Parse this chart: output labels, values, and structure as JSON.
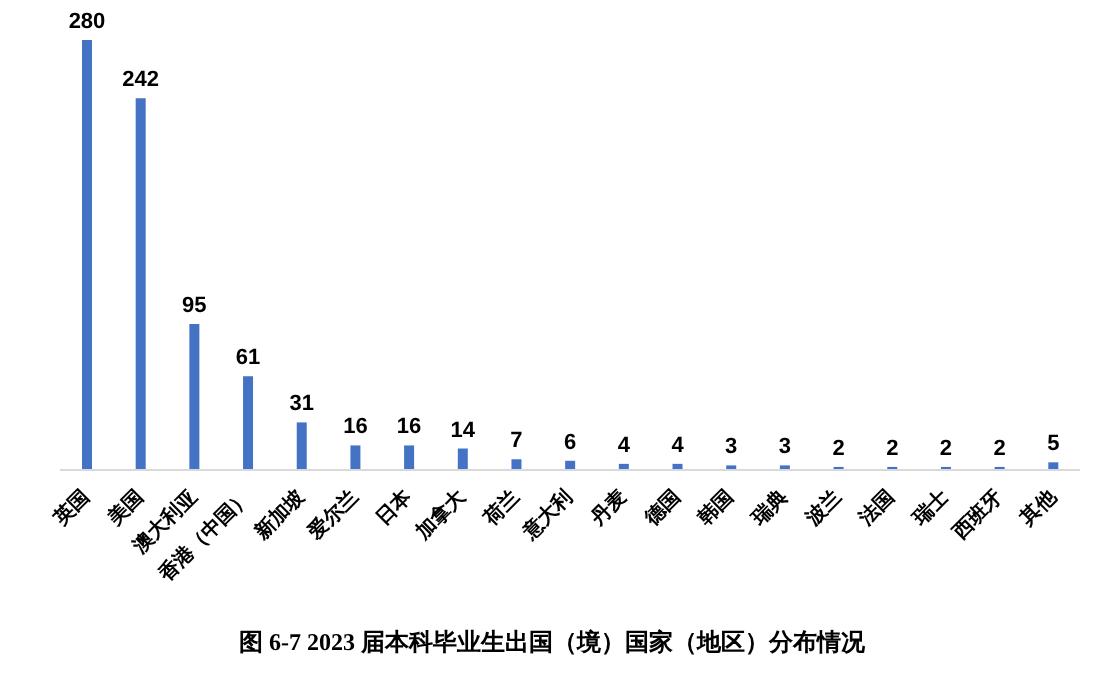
{
  "chart_data": {
    "type": "bar",
    "title": "图 6-7 2023 届本科毕业生出国（境）国家（地区）分布情况",
    "categories": [
      "英国",
      "美国",
      "澳大利亚",
      "香港（中国）",
      "新加坡",
      "爱尔兰",
      "日本",
      "加拿大",
      "荷兰",
      "意大利",
      "丹麦",
      "德国",
      "韩国",
      "瑞典",
      "波兰",
      "法国",
      "瑞士",
      "西班牙",
      "其他"
    ],
    "values": [
      280,
      242,
      95,
      61,
      31,
      16,
      16,
      14,
      7,
      6,
      4,
      4,
      3,
      3,
      2,
      2,
      2,
      2,
      5
    ],
    "color": "#4472c4",
    "data_labels": true,
    "grid": false
  }
}
